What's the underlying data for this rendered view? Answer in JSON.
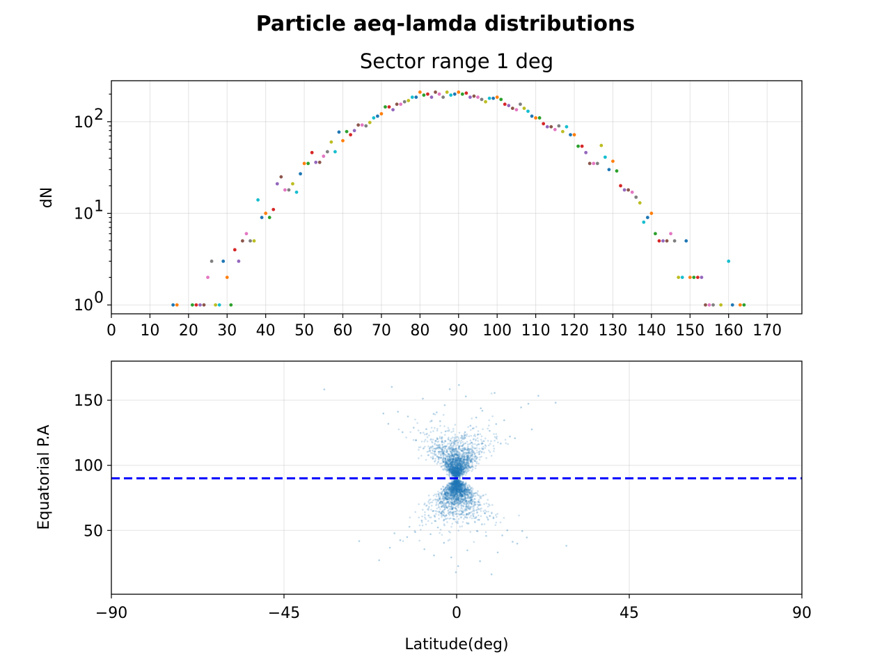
{
  "figure": {
    "suptitle": "Particle aeq-lamda distributions"
  },
  "chart_data": [
    {
      "type": "scatter",
      "title": "Sector range 1 deg",
      "xlabel": "",
      "ylabel": "dN",
      "xlim": [
        0,
        179
      ],
      "ylim": [
        0.8,
        280
      ],
      "yscale": "log",
      "grid": true,
      "xticks": [
        0,
        10,
        20,
        30,
        40,
        50,
        60,
        70,
        80,
        90,
        100,
        110,
        120,
        130,
        140,
        150,
        160,
        170
      ],
      "yticks": [
        {
          "value": 1,
          "base": "10",
          "exp": "0"
        },
        {
          "value": 10,
          "base": "10",
          "exp": "1"
        },
        {
          "value": 100,
          "base": "10",
          "exp": "2"
        }
      ],
      "colors": [
        "#1f77b4",
        "#ff7f0e",
        "#2ca02c",
        "#d62728",
        "#9467bd",
        "#8c564b",
        "#e377c2",
        "#7f7f7f",
        "#bcbd22",
        "#17becf"
      ],
      "x": [
        16,
        17,
        21,
        22,
        23,
        24,
        25,
        26,
        27,
        28,
        29,
        30,
        31,
        32,
        33,
        34,
        35,
        36,
        37,
        38,
        39,
        40,
        41,
        42,
        43,
        44,
        45,
        46,
        47,
        48,
        49,
        50,
        51,
        52,
        53,
        54,
        55,
        56,
        57,
        58,
        59,
        60,
        61,
        62,
        63,
        64,
        65,
        66,
        67,
        68,
        69,
        70,
        71,
        72,
        73,
        74,
        75,
        76,
        77,
        78,
        79,
        80,
        81,
        82,
        83,
        84,
        85,
        86,
        87,
        88,
        89,
        90,
        91,
        92,
        93,
        94,
        95,
        96,
        97,
        98,
        99,
        100,
        101,
        102,
        103,
        104,
        105,
        106,
        107,
        108,
        109,
        110,
        111,
        112,
        113,
        114,
        115,
        116,
        117,
        118,
        119,
        120,
        121,
        122,
        123,
        124,
        125,
        126,
        127,
        128,
        129,
        130,
        131,
        132,
        133,
        134,
        135,
        136,
        137,
        138,
        139,
        140,
        141,
        142,
        143,
        144,
        145,
        146,
        147,
        148,
        149,
        150,
        151,
        152,
        153,
        154,
        155,
        156,
        158,
        160,
        161,
        163,
        164
      ],
      "y": [
        1,
        1,
        1,
        1,
        1,
        1,
        2,
        3,
        1,
        1,
        3,
        2,
        1,
        4,
        3,
        5,
        6,
        5,
        5,
        14,
        9,
        10,
        9,
        11,
        21,
        25,
        18,
        18,
        21,
        17,
        27,
        35,
        35,
        46,
        36,
        36,
        42,
        47,
        60,
        47,
        77,
        62,
        78,
        72,
        80,
        92,
        92,
        90,
        98,
        110,
        115,
        122,
        145,
        145,
        135,
        155,
        155,
        165,
        170,
        185,
        185,
        210,
        195,
        200,
        185,
        210,
        200,
        185,
        210,
        195,
        200,
        210,
        200,
        205,
        185,
        190,
        185,
        175,
        165,
        180,
        180,
        185,
        175,
        155,
        150,
        140,
        135,
        155,
        140,
        130,
        115,
        110,
        110,
        95,
        88,
        88,
        82,
        90,
        78,
        88,
        72,
        72,
        54,
        54,
        46,
        35,
        35,
        35,
        55,
        41,
        30,
        37,
        29,
        20,
        18,
        18,
        17,
        15,
        13,
        8,
        9,
        10,
        6,
        5,
        5,
        5,
        6,
        5,
        2,
        2,
        5,
        2,
        2,
        2,
        2,
        1,
        1,
        1,
        1,
        3,
        1,
        1,
        1
      ]
    },
    {
      "type": "scatter",
      "title": "",
      "xlabel": "Latitude(deg)",
      "ylabel": "Equatorial P.A",
      "xlim": [
        -90,
        90
      ],
      "ylim": [
        1,
        180
      ],
      "grid": true,
      "xticks": [
        {
          "value": -90,
          "label": "−90"
        },
        {
          "value": -45,
          "label": "−45"
        },
        {
          "value": 0,
          "label": "0"
        },
        {
          "value": 45,
          "label": "45"
        },
        {
          "value": 90,
          "label": "90"
        }
      ],
      "yticks": [
        50,
        100,
        150
      ],
      "point_color": "#1f77b4",
      "reference_line": {
        "y": 90,
        "color": "#0000ff",
        "style": "dashed"
      },
      "points": [
        [
          -2.1,
          103.4
        ],
        [
          1.5,
          112.8
        ],
        [
          -3.8,
          121.5
        ],
        [
          4.2,
          128.3
        ],
        [
          -6.5,
          134.2
        ],
        [
          7.1,
          118.6
        ],
        [
          -9.4,
          124.9
        ],
        [
          10.3,
          131.7
        ],
        [
          -12.7,
          137.5
        ],
        [
          13.9,
          122.1
        ],
        [
          -1.2,
          96.8
        ],
        [
          0.8,
          98.1
        ],
        [
          -0.5,
          95.2
        ],
        [
          2.9,
          107.4
        ],
        [
          -4.6,
          113.9
        ],
        [
          5.8,
          116.2
        ],
        [
          -7.9,
          127.8
        ],
        [
          8.6,
          126.5
        ],
        [
          -11.2,
          128.9
        ],
        [
          12.4,
          134.6
        ],
        [
          -15.3,
          141.2
        ],
        [
          16.8,
          144.5
        ],
        [
          -19.1,
          139.8
        ],
        [
          18.7,
          147.3
        ],
        [
          -3.1,
          146.2
        ],
        [
          2.4,
          152.9
        ],
        [
          -1.8,
          158.4
        ],
        [
          0.6,
          161.7
        ],
        [
          -16.9,
          160.2
        ],
        [
          -34.5,
          158.3
        ],
        [
          21.3,
          153.4
        ],
        [
          25.8,
          148.1
        ],
        [
          -5.2,
          140.7
        ],
        [
          6.3,
          143.8
        ],
        [
          -8.8,
          151.2
        ],
        [
          9.9,
          155.6
        ],
        [
          -0.3,
          90.2
        ],
        [
          0.2,
          89.6
        ],
        [
          -0.9,
          93.7
        ],
        [
          1.1,
          94.9
        ],
        [
          -2.6,
          101.6
        ],
        [
          3.4,
          104.2
        ],
        [
          -5.7,
          110.8
        ],
        [
          6.9,
          112.5
        ],
        [
          -10.6,
          119.3
        ],
        [
          11.5,
          116.7
        ],
        [
          -14.1,
          125.4
        ],
        [
          15.2,
          120.8
        ],
        [
          -17.8,
          131.9
        ],
        [
          19.6,
          127.6
        ],
        [
          -2.3,
          78.6
        ],
        [
          1.7,
          84.1
        ],
        [
          -4.1,
          72.3
        ],
        [
          3.9,
          70.5
        ],
        [
          -6.2,
          64.8
        ],
        [
          7.4,
          63.2
        ],
        [
          -9.1,
          57.6
        ],
        [
          9.6,
          59.4
        ],
        [
          -12.3,
          52.8
        ],
        [
          13.2,
          50.1
        ],
        [
          -0.7,
          86.4
        ],
        [
          0.9,
          85.2
        ],
        [
          -1.5,
          81.9
        ],
        [
          2.2,
          79.7
        ],
        [
          -3.6,
          74.6
        ],
        [
          4.7,
          71.9
        ],
        [
          -7.3,
          61.5
        ],
        [
          8.2,
          58.3
        ],
        [
          -10.8,
          48.7
        ],
        [
          11.9,
          46.2
        ],
        [
          -14.7,
          42.5
        ],
        [
          15.8,
          39.9
        ],
        [
          -17.4,
          36.8
        ],
        [
          18.3,
          44.6
        ],
        [
          -20.2,
          27.1
        ],
        [
          -25.4,
          41.8
        ],
        [
          28.6,
          38.2
        ],
        [
          -3.3,
          40.5
        ],
        [
          2.8,
          34.7
        ],
        [
          -1.4,
          29.3
        ],
        [
          0.4,
          22.6
        ],
        [
          -0.2,
          17.9
        ],
        [
          9.1,
          16.3
        ],
        [
          -5.9,
          30.8
        ],
        [
          6.1,
          26.4
        ],
        [
          -8.4,
          35.6
        ],
        [
          10.7,
          33.1
        ],
        [
          -12.9,
          44.9
        ],
        [
          14.6,
          41.3
        ],
        [
          -16.2,
          47.8
        ],
        [
          17.1,
          49.5
        ],
        [
          -1.1,
          66.2
        ],
        [
          1.3,
          62.7
        ],
        [
          -2.8,
          58.9
        ],
        [
          3.1,
          55.4
        ],
        [
          -4.9,
          52.3
        ],
        [
          5.3,
          49.6
        ],
        [
          -6.8,
          47.1
        ],
        [
          7.7,
          45.8
        ],
        [
          -0.4,
          70.3
        ],
        [
          0.5,
          73.8
        ],
        [
          -1.9,
          75.2
        ],
        [
          2.6,
          68.4
        ],
        [
          -3.4,
          64.1
        ],
        [
          4.4,
          60.9
        ],
        [
          -5.5,
          57.2
        ],
        [
          6.6,
          54.7
        ],
        [
          -0.6,
          108.7
        ],
        [
          0.7,
          114.3
        ],
        [
          -1.6,
          118.9
        ],
        [
          2.0,
          122.6
        ],
        [
          -2.9,
          126.1
        ],
        [
          3.6,
          130.4
        ],
        [
          -4.3,
          133.9
        ],
        [
          5.1,
          136.7
        ],
        [
          -6.0,
          139.5
        ],
        [
          6.7,
          141.9
        ],
        [
          -0.1,
          99.8
        ],
        [
          0.3,
          101.2
        ],
        [
          -1.0,
          104.6
        ],
        [
          1.4,
          106.3
        ],
        [
          -2.4,
          110.5
        ],
        [
          2.7,
          111.8
        ],
        [
          -3.7,
          115.7
        ],
        [
          4.0,
          117.4
        ],
        [
          -5.0,
          120.2
        ],
        [
          5.6,
          123.8
        ]
      ]
    }
  ]
}
